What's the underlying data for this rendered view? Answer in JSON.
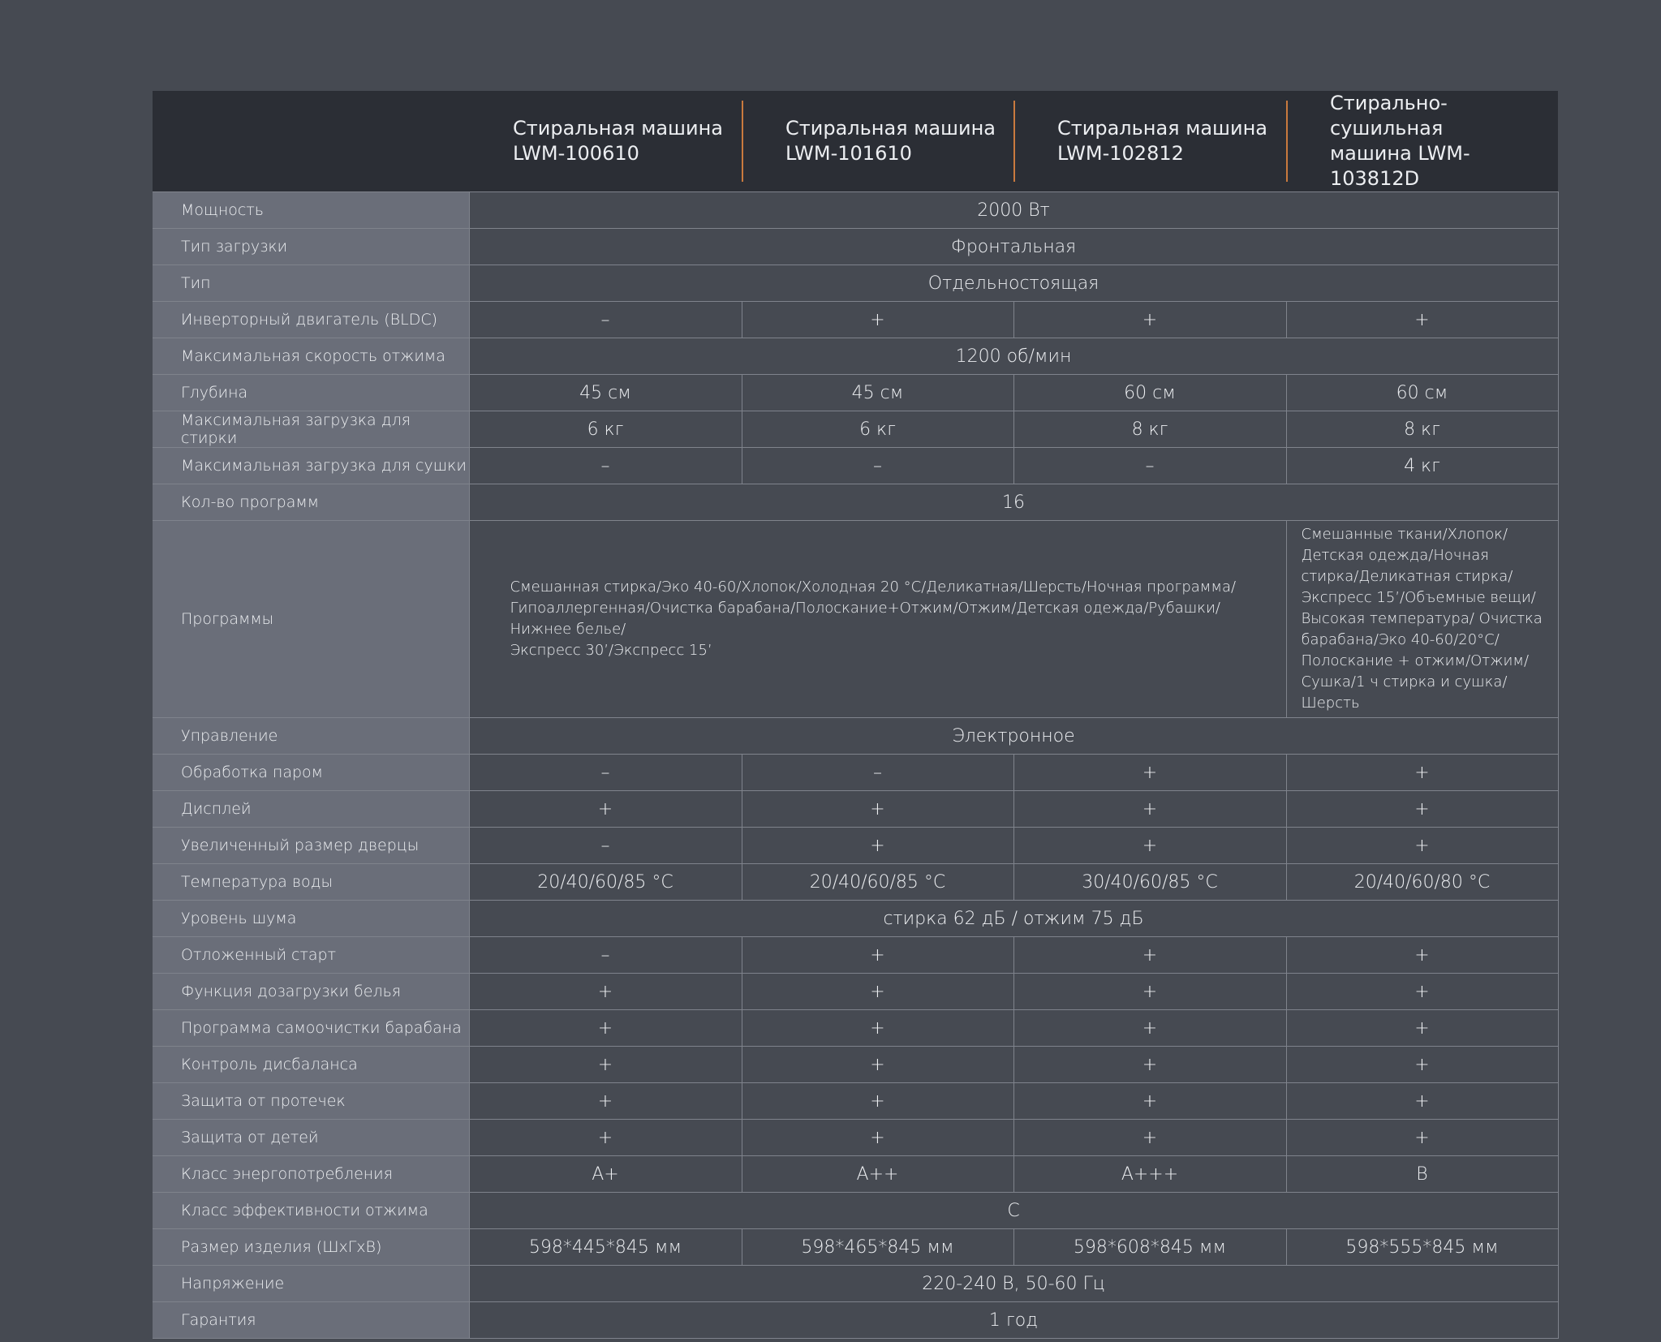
{
  "table": {
    "headers": [
      "Стиральная машина\nLWM-100610",
      "Стиральная машина\nLWM-101610",
      "Стиральная машина\nLWM-102812",
      "Стирально-сушильная\nмашина LWM-103812D"
    ],
    "rows": [
      {
        "label": "Мощность",
        "cells": [
          "2000 Вт"
        ]
      },
      {
        "label": "Тип загрузки",
        "cells": [
          "Фронтальная"
        ]
      },
      {
        "label": "Тип",
        "cells": [
          "Отдельностоящая"
        ]
      },
      {
        "label": "Инверторный двигатель (BLDC)",
        "cells": [
          "–",
          "+",
          "+",
          "+"
        ]
      },
      {
        "label": "Максимальная скорость отжима",
        "cells": [
          "1200 об/мин"
        ]
      },
      {
        "label": "Глубина",
        "cells": [
          "45 см",
          "45 см",
          "60 см",
          "60 см"
        ]
      },
      {
        "label": "Максимальная загрузка для стирки",
        "cells": [
          "6 кг",
          "6 кг",
          "8 кг",
          "8 кг"
        ]
      },
      {
        "label": "Максимальная загрузка для сушки",
        "cells": [
          "–",
          "–",
          "–",
          "4 кг"
        ]
      },
      {
        "label": "Кол-во программ",
        "cells": [
          "16"
        ]
      },
      {
        "label": "Программы",
        "cells": [
          "Смешанная стирка/Эко 40-60/Хлопок/Холодная 20 °C/Деликатная/Шерсть/Ночная программа/\nГипоаллергенная/Очистка барабана/Полоскание+Отжим/Отжим/Детская одежда/Рубашки/Нижнее белье/\nЭкспресс 30’/Экспресс 15’",
          "Смешанные ткани/Хлопок/Детская одежда/Ночная стирка/Деликатная стирка/Экспресс 15’/Объемные вещи/Высокая температура/ Очистка барабана/Эко 40-60/20°C/ Полоскание + отжим/Отжим/ Сушка/1 ч стирка и сушка/Шерсть"
        ]
      },
      {
        "label": "Управление",
        "cells": [
          "Электронное"
        ]
      },
      {
        "label": "Обработка паром",
        "cells": [
          "–",
          "–",
          "+",
          "+"
        ]
      },
      {
        "label": "Дисплей",
        "cells": [
          "+",
          "+",
          "+",
          "+"
        ]
      },
      {
        "label": "Увеличенный размер дверцы",
        "cells": [
          "–",
          "+",
          "+",
          "+"
        ]
      },
      {
        "label": "Температура воды",
        "cells": [
          "20/40/60/85 °C",
          "20/40/60/85 °C",
          "30/40/60/85 °C",
          "20/40/60/80 °C"
        ]
      },
      {
        "label": "Уровень шума",
        "cells": [
          "стирка 62 дБ / отжим 75 дБ"
        ]
      },
      {
        "label": "Отложенный старт",
        "cells": [
          "–",
          "+",
          "+",
          "+"
        ]
      },
      {
        "label": "Функция дозагрузки белья",
        "cells": [
          "+",
          "+",
          "+",
          "+"
        ]
      },
      {
        "label": "Программа самоочистки барабана",
        "cells": [
          "+",
          "+",
          "+",
          "+"
        ]
      },
      {
        "label": "Контроль дисбаланса",
        "cells": [
          "+",
          "+",
          "+",
          "+"
        ]
      },
      {
        "label": "Защита от протечек",
        "cells": [
          "+",
          "+",
          "+",
          "+"
        ]
      },
      {
        "label": "Защита от детей",
        "cells": [
          "+",
          "+",
          "+",
          "+"
        ]
      },
      {
        "label": "Класс энергопотребления",
        "cells": [
          "A+",
          "A++",
          "A+++",
          "B"
        ]
      },
      {
        "label": "Класс эффективности отжима",
        "cells": [
          "C"
        ]
      },
      {
        "label": "Размер изделия (ШхГхВ)",
        "cells": [
          "598*445*845 мм",
          "598*465*845 мм",
          "598*608*845 мм",
          "598*555*845 мм"
        ]
      },
      {
        "label": "Напряжение",
        "cells": [
          "220-240 В, 50-60 Гц"
        ]
      },
      {
        "label": "Гарантия",
        "cells": [
          "1 год"
        ]
      }
    ]
  }
}
